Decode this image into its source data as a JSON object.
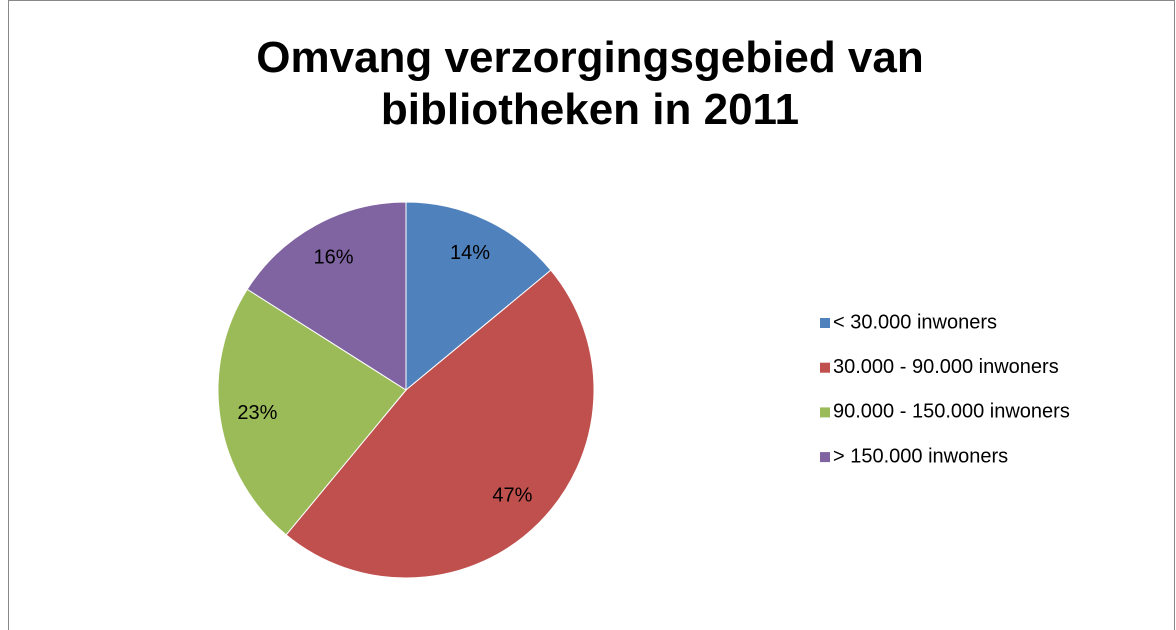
{
  "chart_data": {
    "type": "pie",
    "title": "Omvang verzorgingsgebied van bibliotheken in 2011",
    "categories": [
      "< 30.000 inwoners",
      "30.000 - 90.000 inwoners",
      "90.000 - 150.000 inwoners",
      "> 150.000 inwoners"
    ],
    "values": [
      14,
      47,
      23,
      16
    ],
    "value_labels": [
      "14%",
      "47%",
      "23%",
      "16%"
    ],
    "colors": [
      "#4f81bd",
      "#c0504d",
      "#9bbb59",
      "#8064a2"
    ],
    "legend": "right"
  }
}
